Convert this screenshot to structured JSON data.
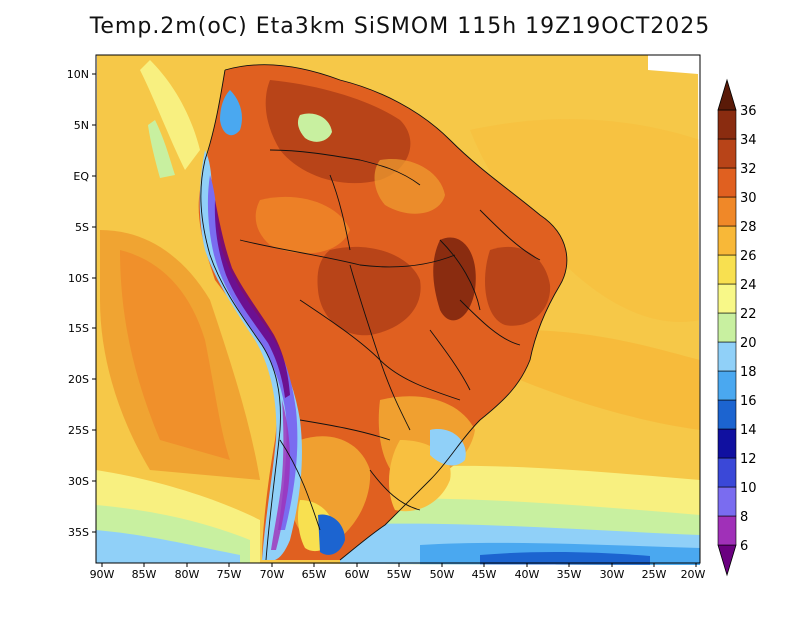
{
  "title": "Temp.2m(oC) Eta3km SiSMOM 115h 19Z19OCT2025",
  "lat_labels": [
    "10N",
    "5N",
    "EQ",
    "5S",
    "10S",
    "15S",
    "20S",
    "25S",
    "30S",
    "35S"
  ],
  "lon_labels": [
    "90W",
    "85W",
    "80W",
    "75W",
    "70W",
    "65W",
    "60W",
    "55W",
    "50W",
    "45W",
    "40W",
    "35W",
    "30W",
    "25W",
    "20W"
  ],
  "colorbar": {
    "labels": [
      "6",
      "8",
      "10",
      "12",
      "14",
      "16",
      "18",
      "20",
      "22",
      "24",
      "26",
      "28",
      "30",
      "32",
      "34",
      "36"
    ],
    "colors": [
      "#6a0080",
      "#a030b8",
      "#7a6cf0",
      "#3a48d8",
      "#1010a0",
      "#1c64d0",
      "#4aa8f0",
      "#90d0f8",
      "#c8f0a0",
      "#f8f888",
      "#f8e050",
      "#f8b838",
      "#f08828",
      "#e06020",
      "#b84418",
      "#8a2c10",
      "#5a1a08"
    ]
  }
}
